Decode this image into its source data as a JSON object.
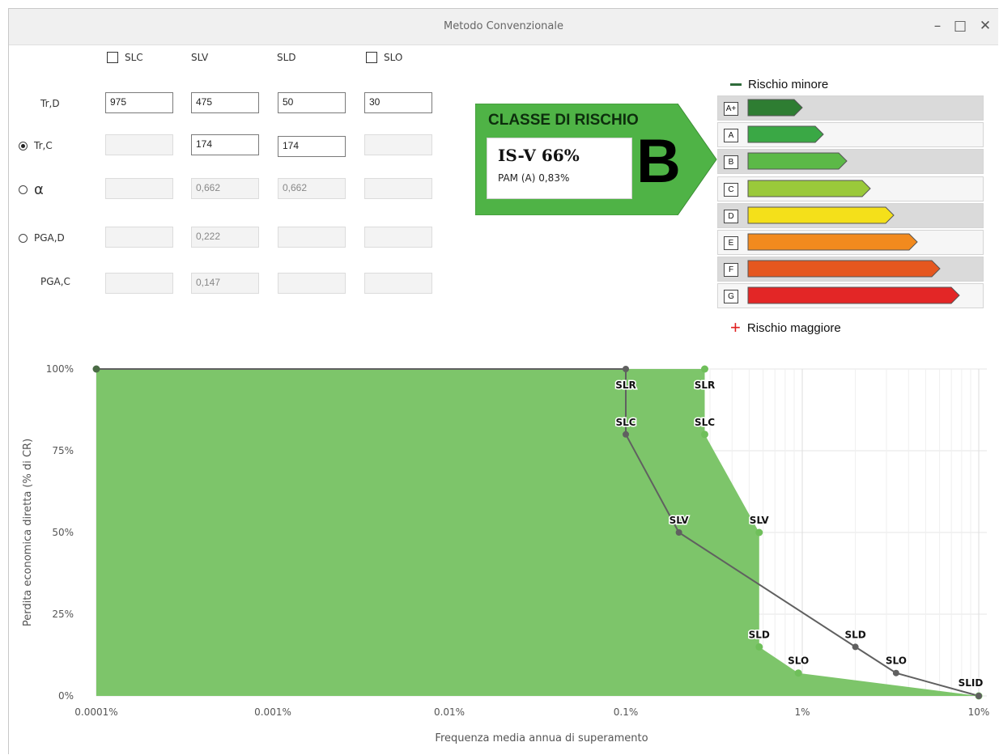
{
  "window": {
    "title": "Metodo Convenzionale",
    "minimize_icon": "minimize-icon",
    "maximize_icon": "maximize-icon",
    "close_icon": "close-icon"
  },
  "form": {
    "columns": [
      {
        "label": "SLC",
        "checkbox": true,
        "checked": false
      },
      {
        "label": "SLV",
        "checkbox": false
      },
      {
        "label": "SLD",
        "checkbox": false
      },
      {
        "label": "SLO",
        "checkbox": true,
        "checked": false
      }
    ],
    "rows": [
      {
        "label": "Tr,D",
        "radio": false,
        "values": [
          "975",
          "475",
          "50",
          "30"
        ],
        "enabled": [
          true,
          true,
          true,
          true
        ]
      },
      {
        "label": "Tr,C",
        "radio": true,
        "selected": true,
        "values": [
          "",
          "174",
          "174",
          ""
        ],
        "enabled": [
          false,
          true,
          true,
          false
        ]
      },
      {
        "label": "α",
        "radio": true,
        "selected": false,
        "values": [
          "",
          "0,662",
          "0,662",
          ""
        ],
        "enabled": [
          false,
          false,
          false,
          false
        ]
      },
      {
        "label": "PGA,D",
        "radio": true,
        "selected": false,
        "values": [
          "",
          "0,222",
          "",
          ""
        ],
        "enabled": [
          false,
          false,
          false,
          false
        ]
      },
      {
        "label": "PGA,C",
        "radio": false,
        "values": [
          "",
          "0,147",
          "",
          ""
        ],
        "enabled": [
          false,
          false,
          false,
          false
        ]
      }
    ]
  },
  "risk": {
    "title": "CLASSE DI RISCHIO",
    "isv": "IS-V 66%",
    "pam": "PAM (A) 0,83%",
    "class_letter": "B",
    "badge_color": "#4fb346",
    "legend_low": "Rischio minore",
    "legend_high": "Rischio maggiore",
    "scale": [
      {
        "letter": "A+",
        "color": "#2e7d32",
        "length": 0.26,
        "shaded": true
      },
      {
        "letter": "A",
        "color": "#3aa845",
        "length": 0.36,
        "shaded": false
      },
      {
        "letter": "B",
        "color": "#5cb947",
        "length": 0.47,
        "shaded": true
      },
      {
        "letter": "C",
        "color": "#9ac93a",
        "length": 0.58,
        "shaded": false
      },
      {
        "letter": "D",
        "color": "#f4e01a",
        "length": 0.69,
        "shaded": true
      },
      {
        "letter": "E",
        "color": "#f28a1e",
        "length": 0.8,
        "shaded": false
      },
      {
        "letter": "F",
        "color": "#e5571f",
        "length": 0.91,
        "shaded": true
      },
      {
        "letter": "G",
        "color": "#e32626",
        "length": 1.0,
        "shaded": false
      }
    ]
  },
  "chart_data": {
    "type": "area",
    "xlabel": "Frequenza media annua di superamento",
    "ylabel": "Perdita economica diretta (% di CR)",
    "x_scale": "log",
    "x_ticks": [
      "0.0001%",
      "0.001%",
      "0.01%",
      "0.1%",
      "1%",
      "10%"
    ],
    "x_tick_values": [
      0.0001,
      0.001,
      0.01,
      0.1,
      1,
      10
    ],
    "y_ticks": [
      "0%",
      "25%",
      "50%",
      "75%",
      "100%"
    ],
    "y_tick_values": [
      0,
      25,
      50,
      75,
      100
    ],
    "ylim": [
      0,
      100
    ],
    "grid": true,
    "area_color": "#7dc56a",
    "series": [
      {
        "role": "area",
        "color": "#6fbf5a",
        "points": [
          {
            "x": 0.0001,
            "y": 100,
            "label": ""
          },
          {
            "x": 0.28,
            "y": 100,
            "label": "SLR"
          },
          {
            "x": 0.28,
            "y": 80,
            "label": "SLC"
          },
          {
            "x": 0.57,
            "y": 50,
            "label": "SLV"
          },
          {
            "x": 0.57,
            "y": 15,
            "label": "SLD"
          },
          {
            "x": 0.95,
            "y": 7,
            "label": "SLO"
          },
          {
            "x": 10,
            "y": 0,
            "label": "SLID"
          }
        ]
      },
      {
        "role": "line",
        "color": "#606060",
        "points": [
          {
            "x": 0.0001,
            "y": 100,
            "label": ""
          },
          {
            "x": 0.1,
            "y": 100,
            "label": "SLR"
          },
          {
            "x": 0.1,
            "y": 80,
            "label": "SLC"
          },
          {
            "x": 0.2,
            "y": 50,
            "label": "SLV"
          },
          {
            "x": 2.0,
            "y": 15,
            "label": "SLD"
          },
          {
            "x": 3.4,
            "y": 7,
            "label": "SLO"
          },
          {
            "x": 10,
            "y": 0,
            "label": "SLID"
          }
        ]
      }
    ]
  }
}
